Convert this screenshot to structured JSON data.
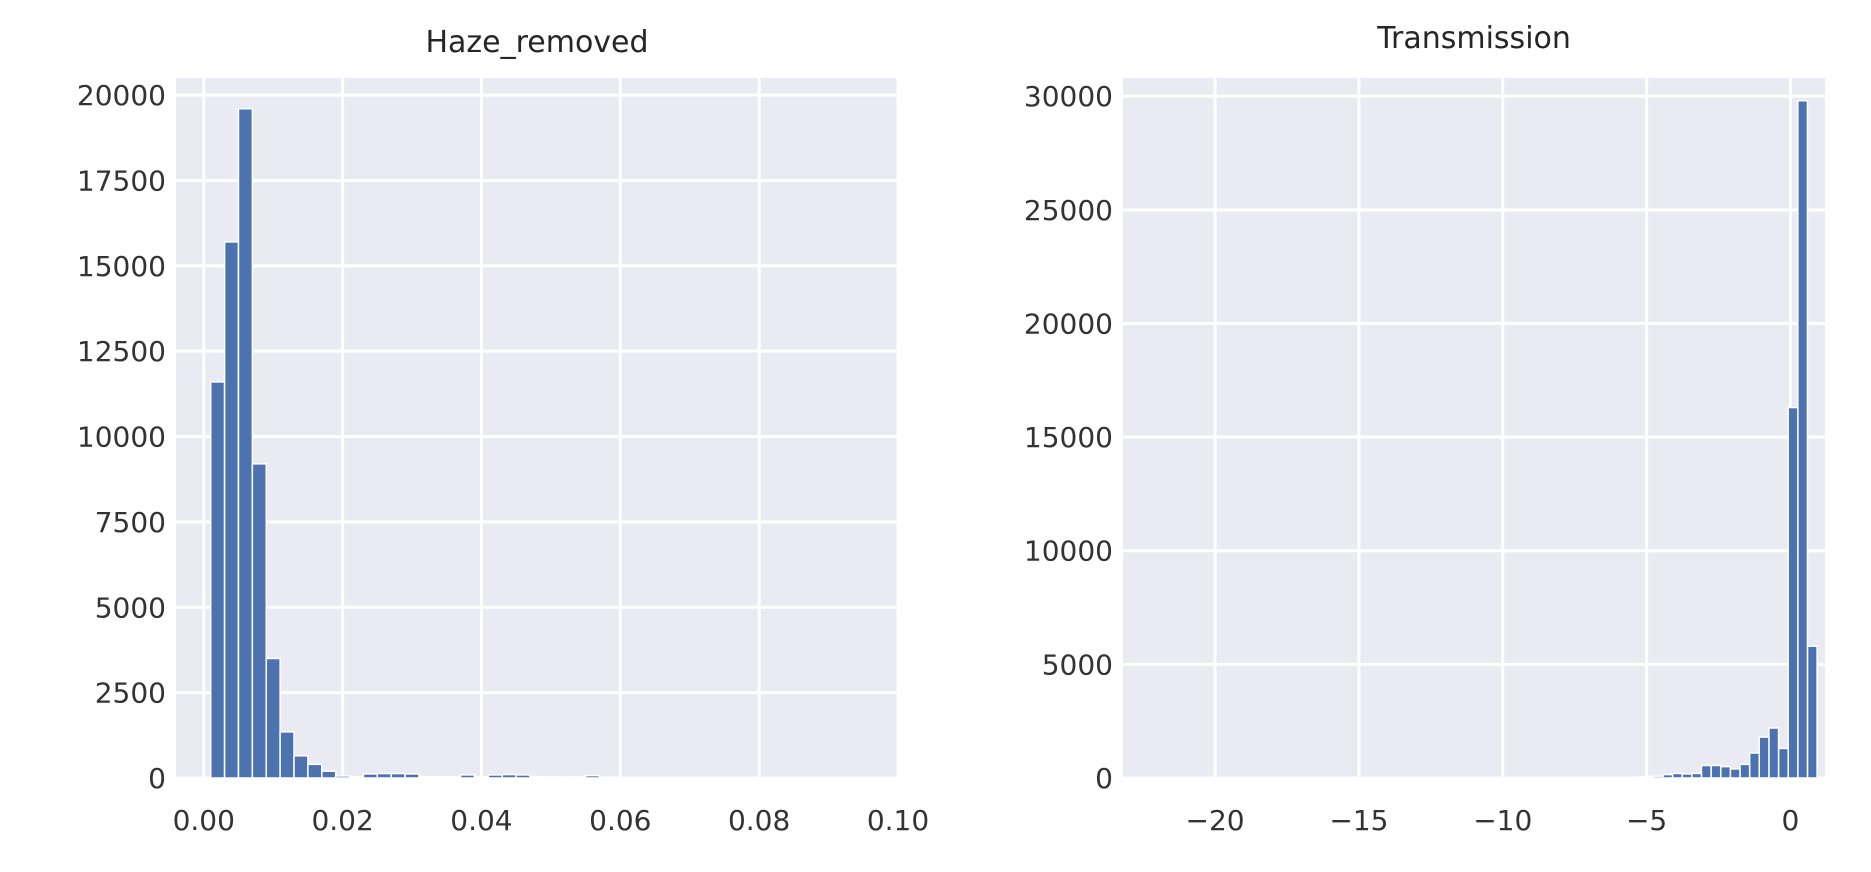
{
  "chart_data": [
    {
      "type": "bar",
      "title": "Haze_removed",
      "xlabel": "",
      "ylabel": "",
      "xlim": [
        -0.004,
        0.1
      ],
      "ylim": [
        0,
        20500
      ],
      "xticks": [
        0.0,
        0.02,
        0.04,
        0.06,
        0.08,
        0.1
      ],
      "xtick_labels": [
        "0.00",
        "0.02",
        "0.04",
        "0.06",
        "0.08",
        "0.10"
      ],
      "yticks": [
        0,
        2500,
        5000,
        7500,
        10000,
        12500,
        15000,
        17500,
        20000
      ],
      "ytick_labels": [
        "0",
        "2500",
        "5000",
        "7500",
        "10000",
        "12500",
        "15000",
        "17500",
        "20000"
      ],
      "grid": true,
      "bar_color": "#4c72b0",
      "bin_width": 0.002,
      "bin_start": 0.001,
      "bar_values": [
        11600,
        15700,
        19600,
        9200,
        3500,
        1350,
        650,
        400,
        200,
        60,
        40,
        120,
        130,
        130,
        120,
        40,
        40,
        40,
        90,
        40,
        90,
        100,
        90,
        40,
        30,
        30,
        30,
        70,
        25,
        20
      ]
    },
    {
      "type": "bar",
      "title": "Transmission",
      "xlabel": "",
      "ylabel": "",
      "xlim": [
        -23.2,
        1.2
      ],
      "ylim": [
        0,
        30800
      ],
      "xticks": [
        -20,
        -15,
        -10,
        -5,
        0
      ],
      "xtick_labels": [
        "−20",
        "−15",
        "−10",
        "−5",
        "0"
      ],
      "yticks": [
        0,
        5000,
        10000,
        15000,
        20000,
        25000,
        30000
      ],
      "ytick_labels": [
        "0",
        "5000",
        "10000",
        "15000",
        "20000",
        "25000",
        "30000"
      ],
      "grid": true,
      "bar_color": "#4c72b0",
      "bin_width": 0.335,
      "bin_start": 0.925,
      "bar_values": [
        5800,
        29800,
        16300,
        1300,
        2200,
        1800,
        1100,
        600,
        400,
        500,
        550,
        550,
        200,
        180,
        200,
        150,
        80,
        60,
        40,
        20,
        10
      ]
    }
  ]
}
